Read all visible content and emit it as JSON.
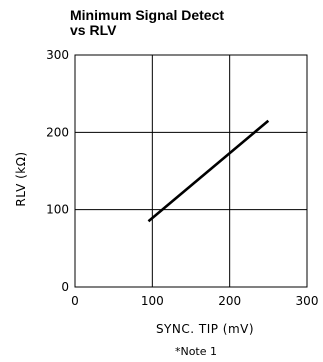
{
  "chart_data": {
    "type": "line",
    "title": [
      "Minimum Signal Detect",
      "vs RLV"
    ],
    "xlabel": "SYNC. TIP (mV)",
    "ylabel": "RLV (kΩ)",
    "note": "*Note 1",
    "xlim": [
      0,
      300
    ],
    "ylim": [
      0,
      300
    ],
    "xticks": [
      0,
      100,
      200,
      300
    ],
    "yticks": [
      0,
      100,
      200,
      300
    ],
    "grid": true,
    "series": [
      {
        "x": [
          95,
          250
        ],
        "y": [
          85,
          215
        ]
      }
    ]
  }
}
